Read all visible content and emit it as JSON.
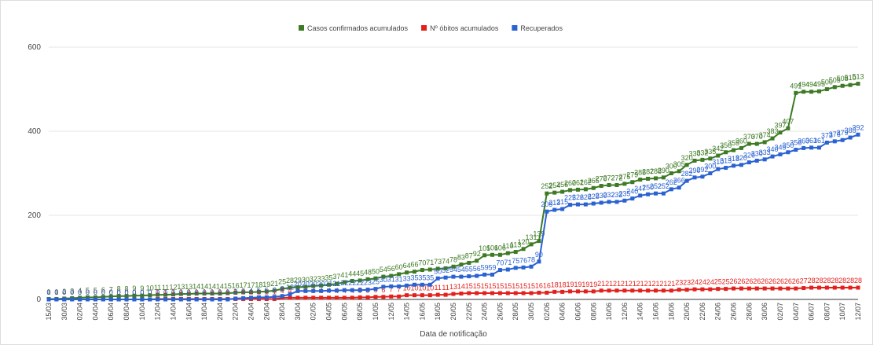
{
  "chart_data": {
    "type": "line",
    "x_label": "Data de notificação",
    "categories": [
      "15/03",
      null,
      "30/03",
      null,
      "02/04",
      null,
      "04/04",
      null,
      "06/04",
      null,
      "08/04",
      null,
      "10/04",
      null,
      "12/04",
      null,
      "14/04",
      null,
      "16/04",
      null,
      "18/04",
      null,
      "20/04",
      null,
      "22/04",
      null,
      "24/04",
      null,
      "26/04",
      null,
      "28/04",
      null,
      "30/04",
      null,
      "02/05",
      null,
      "04/05",
      null,
      "06/05",
      null,
      "08/05",
      null,
      "10/05",
      null,
      "12/05",
      null,
      "14/05",
      null,
      "16/05",
      null,
      "18/05",
      null,
      "20/05",
      null,
      "22/05",
      null,
      "24/05",
      null,
      "26/05",
      null,
      "28/05",
      null,
      "30/05",
      null,
      "02/06",
      null,
      "04/06",
      null,
      "06/06",
      null,
      "08/06",
      null,
      "10/06",
      null,
      "12/06",
      null,
      "14/06",
      null,
      "16/06",
      null,
      "18/06",
      null,
      "20/06",
      null,
      "22/06",
      null,
      "24/06",
      null,
      "26/06",
      null,
      "28/06",
      null,
      "30/06",
      null,
      "02/07",
      null,
      "04/07",
      null,
      "06/07",
      null,
      "08/07",
      null,
      "10/07",
      null,
      "12/07"
    ],
    "series": [
      {
        "name": "Casos confirmados acumulados",
        "color": "#3d7a24",
        "values": [
          1,
          1,
          2,
          3,
          4,
          5,
          5,
          6,
          7,
          8,
          8,
          9,
          9,
          10,
          11,
          11,
          12,
          13,
          13,
          14,
          14,
          14,
          14,
          15,
          16,
          17,
          17,
          18,
          19,
          21,
          25,
          28,
          29,
          30,
          32,
          33,
          35,
          37,
          41,
          44,
          45,
          48,
          50,
          54,
          56,
          60,
          64,
          66,
          70,
          71,
          73,
          74,
          78,
          83,
          87,
          92,
          105,
          106,
          106,
          110,
          113,
          120,
          131,
          139,
          252,
          254,
          256,
          260,
          261,
          262,
          265,
          270,
          272,
          272,
          275,
          279,
          285,
          287,
          288,
          290,
          300,
          305,
          320,
          330,
          332,
          335,
          342,
          350,
          355,
          360,
          370,
          370,
          374,
          383,
          397,
          407,
          491,
          494,
          494,
          495,
          500,
          505,
          508,
          510,
          513
        ]
      },
      {
        "name": "Nº óbitos acumulados",
        "color": "#e3211c",
        "values": [
          0,
          0,
          0,
          0,
          0,
          0,
          0,
          0,
          0,
          0,
          0,
          0,
          0,
          0,
          1,
          1,
          1,
          1,
          1,
          1,
          1,
          1,
          1,
          1,
          1,
          1,
          1,
          1,
          1,
          1,
          4,
          4,
          4,
          4,
          4,
          4,
          4,
          4,
          4,
          4,
          5,
          5,
          6,
          6,
          7,
          7,
          10,
          10,
          10,
          10,
          11,
          11,
          13,
          14,
          15,
          15,
          15,
          15,
          15,
          15,
          15,
          15,
          15,
          16,
          16,
          18,
          18,
          19,
          19,
          19,
          19,
          21,
          21,
          21,
          21,
          21,
          21,
          21,
          21,
          21,
          21,
          23,
          23,
          24,
          24,
          24,
          25,
          25,
          26,
          26,
          26,
          26,
          26,
          26,
          26,
          26,
          26,
          27,
          28,
          28,
          28,
          28,
          28,
          28,
          28
        ]
      },
      {
        "name": "Recuperados",
        "color": "#2a62d2",
        "values": [
          0,
          0,
          0,
          0,
          0,
          0,
          0,
          0,
          0,
          0,
          0,
          0,
          0,
          0,
          0,
          0,
          0,
          0,
          0,
          0,
          0,
          0,
          0,
          0,
          2,
          3,
          4,
          5,
          5,
          6,
          8,
          12,
          20,
          20,
          20,
          20,
          21,
          21,
          22,
          22,
          22,
          23,
          25,
          30,
          31,
          31,
          33,
          35,
          35,
          35,
          50,
          52,
          54,
          54,
          55,
          56,
          59,
          59,
          70,
          71,
          75,
          76,
          78,
          90,
          209,
          213,
          215,
          225,
          226,
          226,
          228,
          230,
          232,
          232,
          235,
          240,
          247,
          250,
          252,
          252,
          262,
          266,
          282,
          290,
          292,
          300,
          310,
          313,
          318,
          320,
          326,
          330,
          333,
          340,
          345,
          350,
          356,
          360,
          361,
          361,
          373,
          376,
          379,
          385,
          392
        ]
      }
    ],
    "ylim": [
      0,
      600
    ],
    "yticks": [
      0,
      200,
      400,
      600
    ],
    "grid": true,
    "legend": "top"
  }
}
